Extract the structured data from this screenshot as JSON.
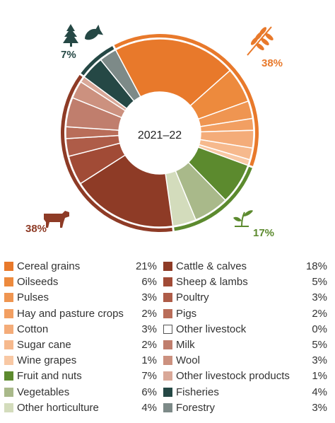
{
  "chart_data": {
    "type": "pie",
    "center_label": "2021–22",
    "slices": [
      {
        "name": "Cereal grains",
        "value": 21,
        "label": "21%",
        "color": "#E8792B",
        "group": "crops"
      },
      {
        "name": "Oilseeds",
        "value": 6,
        "label": "6%",
        "color": "#ED8A3D",
        "group": "crops"
      },
      {
        "name": "Pulses",
        "value": 3,
        "label": "3%",
        "color": "#EF9551",
        "group": "crops"
      },
      {
        "name": "Hay and pasture crops",
        "value": 2,
        "label": "2%",
        "color": "#F29F62",
        "group": "crops"
      },
      {
        "name": "Cotton",
        "value": 3,
        "label": "3%",
        "color": "#F4AC79",
        "group": "crops"
      },
      {
        "name": "Sugar cane",
        "value": 2,
        "label": "2%",
        "color": "#F6B98D",
        "group": "crops"
      },
      {
        "name": "Wine grapes",
        "value": 1,
        "label": "1%",
        "color": "#F8C8A4",
        "group": "crops"
      },
      {
        "name": "Fruit and nuts",
        "value": 7,
        "label": "7%",
        "color": "#5C8A2E",
        "group": "horticulture"
      },
      {
        "name": "Vegetables",
        "value": 6,
        "label": "6%",
        "color": "#A9B98A",
        "group": "horticulture"
      },
      {
        "name": "Other horticulture",
        "value": 4,
        "label": "4%",
        "color": "#D3DCBC",
        "group": "horticulture"
      },
      {
        "name": "Cattle & calves",
        "value": 18,
        "label": "18%",
        "color": "#8E3B26",
        "group": "livestock"
      },
      {
        "name": "Sheep & lambs",
        "value": 5,
        "label": "5%",
        "color": "#A14B36",
        "group": "livestock"
      },
      {
        "name": "Poultry",
        "value": 3,
        "label": "3%",
        "color": "#AE5C48",
        "group": "livestock"
      },
      {
        "name": "Pigs",
        "value": 2,
        "label": "2%",
        "color": "#B96D59",
        "group": "livestock"
      },
      {
        "name": "Other livestock",
        "value": 0,
        "label": "0%",
        "color": "#FFFFFF",
        "group": "livestock"
      },
      {
        "name": "Milk",
        "value": 5,
        "label": "5%",
        "color": "#C07E6D",
        "group": "livestock"
      },
      {
        "name": "Wool",
        "value": 3,
        "label": "3%",
        "color": "#CC917F",
        "group": "livestock"
      },
      {
        "name": "Other livestock products",
        "value": 1,
        "label": "1%",
        "color": "#D9A898",
        "group": "livestock"
      },
      {
        "name": "Fisheries",
        "value": 4,
        "label": "4%",
        "color": "#254845",
        "group": "fishing_forestry"
      },
      {
        "name": "Forestry",
        "value": 3,
        "label": "3%",
        "color": "#7D8A88",
        "group": "fishing_forestry"
      }
    ],
    "groups": [
      {
        "id": "crops",
        "label": "38%",
        "color": "#E8792B",
        "icon": "wheat-icon"
      },
      {
        "id": "horticulture",
        "label": "17%",
        "color": "#5C8A2E",
        "icon": "seedling-icon"
      },
      {
        "id": "livestock",
        "label": "38%",
        "color": "#8E3B26",
        "icon": "cow-icon"
      },
      {
        "id": "fishing_forestry",
        "label": "7%",
        "color": "#254845",
        "icon": "tree-and-fish-icon"
      }
    ]
  },
  "legend": {
    "left": [
      {
        "name": "Cereal grains",
        "value": "21%",
        "color": "#E8792B"
      },
      {
        "name": "Oilseeds",
        "value": "6%",
        "color": "#ED8A3D"
      },
      {
        "name": "Pulses",
        "value": "3%",
        "color": "#EF9551"
      },
      {
        "name": "Hay and pasture crops",
        "value": "2%",
        "color": "#F29F62"
      },
      {
        "name": "Cotton",
        "value": "3%",
        "color": "#F4AC79"
      },
      {
        "name": "Sugar cane",
        "value": "2%",
        "color": "#F6B98D"
      },
      {
        "name": "Wine grapes",
        "value": "1%",
        "color": "#F8C8A4"
      },
      {
        "name": "Fruit and nuts",
        "value": "7%",
        "color": "#5C8A2E"
      },
      {
        "name": "Vegetables",
        "value": "6%",
        "color": "#A9B98A"
      },
      {
        "name": "Other horticulture",
        "value": "4%",
        "color": "#D3DCBC"
      }
    ],
    "right": [
      {
        "name": "Cattle & calves",
        "value": "18%",
        "color": "#8E3B26"
      },
      {
        "name": "Sheep & lambs",
        "value": "5%",
        "color": "#A14B36"
      },
      {
        "name": "Poultry",
        "value": "3%",
        "color": "#AE5C48"
      },
      {
        "name": "Pigs",
        "value": "2%",
        "color": "#B96D59"
      },
      {
        "name": "Other livestock",
        "value": "0%",
        "color": "#FFFFFF"
      },
      {
        "name": "Milk",
        "value": "5%",
        "color": "#C07E6D"
      },
      {
        "name": "Wool",
        "value": "3%",
        "color": "#CC917F"
      },
      {
        "name": "Other livestock products",
        "value": "1%",
        "color": "#D9A898"
      },
      {
        "name": "Fisheries",
        "value": "4%",
        "color": "#254845"
      },
      {
        "name": "Forestry",
        "value": "3%",
        "color": "#7D8A88"
      }
    ]
  }
}
